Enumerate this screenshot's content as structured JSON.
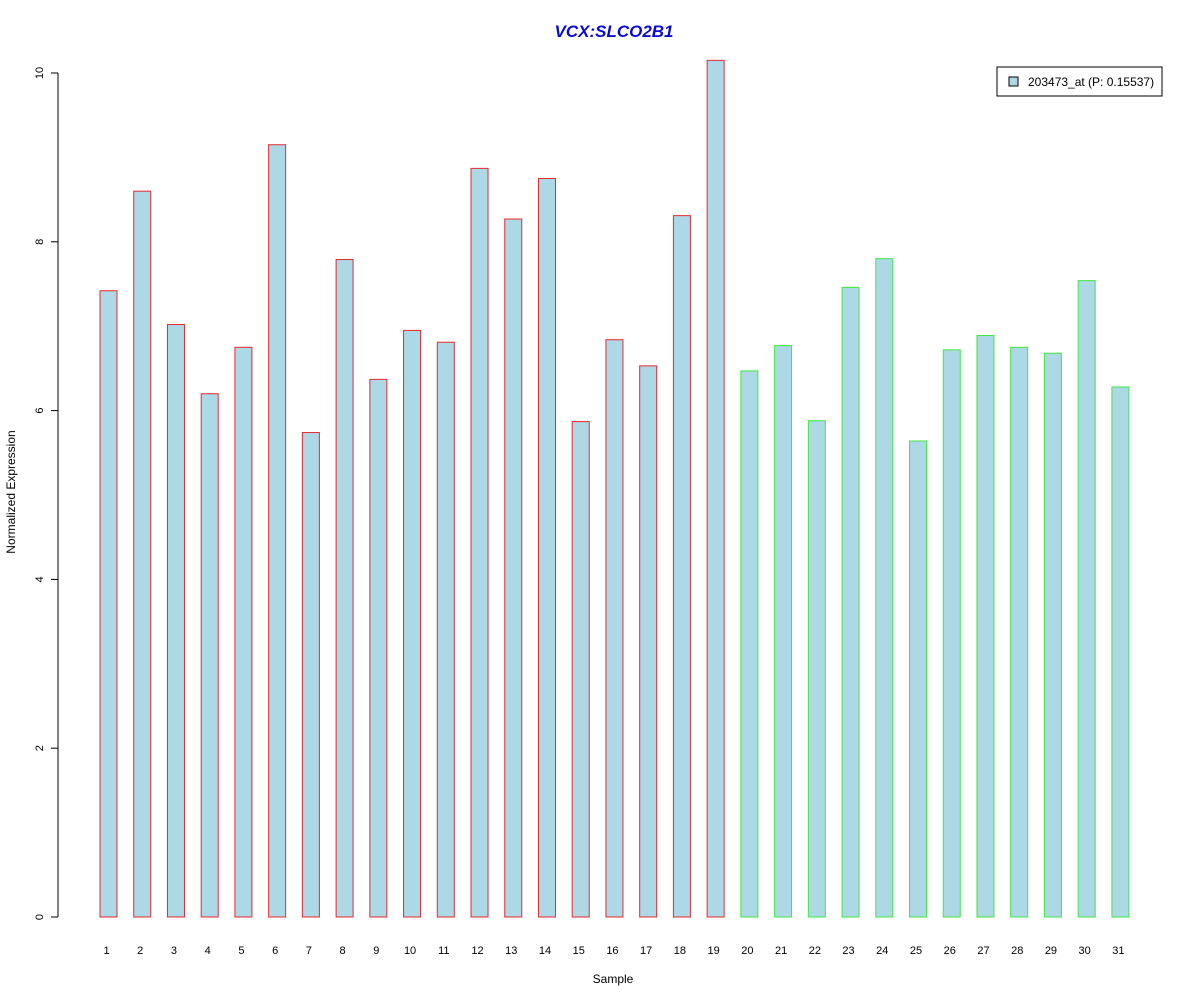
{
  "chart_data": {
    "type": "bar",
    "title": "VCX:SLCO2B1",
    "xlabel": "Sample",
    "ylabel": "Normalized Expression",
    "ylim": [
      0,
      10
    ],
    "yticks": [
      0,
      2,
      4,
      6,
      8,
      10
    ],
    "categories": [
      "1",
      "2",
      "3",
      "4",
      "5",
      "6",
      "7",
      "8",
      "9",
      "10",
      "11",
      "12",
      "13",
      "14",
      "15",
      "16",
      "17",
      "18",
      "19",
      "20",
      "21",
      "22",
      "23",
      "24",
      "25",
      "26",
      "27",
      "28",
      "29",
      "30",
      "31"
    ],
    "series": [
      {
        "name": "203473_at (P: 0.15537)",
        "values": [
          7.42,
          8.6,
          7.02,
          6.2,
          6.75,
          9.15,
          5.74,
          7.79,
          6.37,
          6.95,
          6.81,
          8.87,
          8.27,
          8.75,
          5.87,
          6.84,
          6.53,
          8.31,
          10.15,
          6.47,
          6.77,
          5.88,
          7.46,
          7.8,
          5.64,
          6.72,
          6.89,
          6.75,
          6.68,
          7.54,
          6.28
        ]
      }
    ],
    "groups": [
      {
        "from": 1,
        "to": 19,
        "border_color": "#e8282c"
      },
      {
        "from": 20,
        "to": 31,
        "border_color": "#3fe83f"
      }
    ],
    "bar_fill": "#add8e6",
    "title_color": "#0a0ad6",
    "legend_position": "top-right",
    "grid": false
  }
}
